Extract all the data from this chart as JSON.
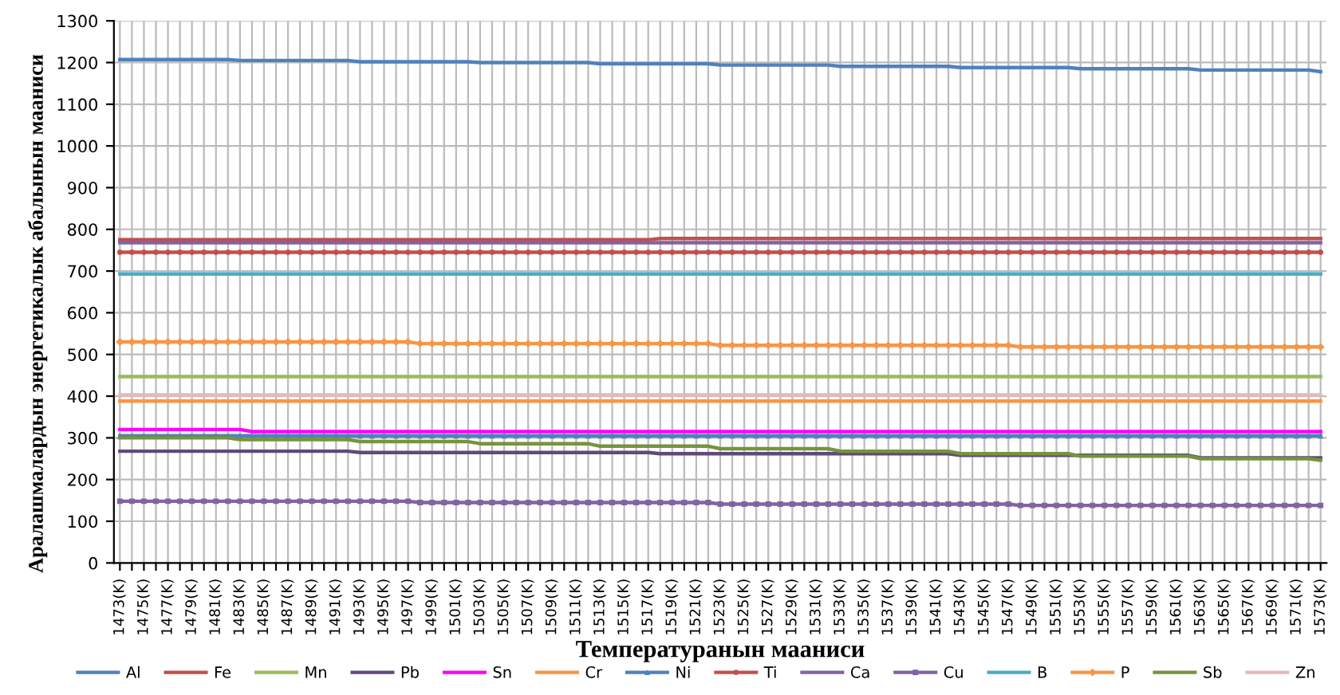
{
  "chart_data": {
    "type": "line",
    "xlabel": "Температуранын мааниси",
    "ylabel": "Аралашмалардын энергетикалык абалынын мааниси",
    "categories": [
      "1473(K)",
      null,
      "1475(K)",
      null,
      "1477(K)",
      null,
      "1479(K)",
      null,
      "1481(K)",
      null,
      "1483(K)",
      null,
      "1485(K)",
      null,
      "1487(K)",
      null,
      "1489(K)",
      null,
      "1491(K)",
      null,
      "1493(K)",
      null,
      "1495(K)",
      null,
      "1497(K)",
      null,
      "1499(K)",
      null,
      "1501(K)",
      null,
      "1503(K)",
      null,
      "1505(K)",
      null,
      "1507(K)",
      null,
      "1509(K)",
      null,
      "1511(K)",
      null,
      "1513(K)",
      null,
      "1515(K)",
      null,
      "1517(K)",
      null,
      "1519(K)",
      null,
      "1521(K)",
      null,
      "1523(K)",
      null,
      "1525(K)",
      null,
      "1527(K)",
      null,
      "1529(K)",
      null,
      "1531(K)",
      null,
      "1533(K)",
      null,
      "1535(K)",
      null,
      "1537(K)",
      null,
      "1539(K)",
      null,
      "1541(K)",
      null,
      "1543(K)",
      null,
      "1545(K)",
      null,
      "1547(K)",
      null,
      "1549(K)",
      null,
      "1551(K)",
      null,
      "1553(K)",
      null,
      "1555(K)",
      null,
      "1557(K)",
      null,
      "1559(K)",
      null,
      "1561(K)",
      null,
      "1563(K)",
      null,
      "1565(K)",
      null,
      "1567(K)",
      null,
      "1569(K)",
      null,
      "1571(K)",
      null,
      "1573(K)"
    ],
    "ylim": [
      0,
      1300
    ],
    "yticks": [
      0,
      100,
      200,
      300,
      400,
      500,
      600,
      700,
      800,
      900,
      1000,
      1100,
      1200,
      1300
    ],
    "grid": true,
    "legend": "bottom",
    "line_style": "solid",
    "series": [
      {
        "name": "Al",
        "color": "#4f81bd",
        "marker": "none",
        "values": [
          1207,
          1207,
          1207,
          1207,
          1207,
          1207,
          1207,
          1207,
          1207,
          1207,
          1205,
          1205,
          1205,
          1205,
          1205,
          1205,
          1205,
          1205,
          1205,
          1205,
          1202,
          1202,
          1202,
          1202,
          1202,
          1202,
          1202,
          1202,
          1202,
          1202,
          1200,
          1200,
          1200,
          1200,
          1200,
          1200,
          1200,
          1200,
          1200,
          1200,
          1197,
          1197,
          1197,
          1197,
          1197,
          1197,
          1197,
          1197,
          1197,
          1197,
          1194,
          1194,
          1194,
          1194,
          1194,
          1194,
          1194,
          1194,
          1194,
          1194,
          1191,
          1191,
          1191,
          1191,
          1191,
          1191,
          1191,
          1191,
          1191,
          1191,
          1188,
          1188,
          1188,
          1188,
          1188,
          1188,
          1188,
          1188,
          1188,
          1188,
          1185,
          1185,
          1185,
          1185,
          1185,
          1185,
          1185,
          1185,
          1185,
          1185,
          1182,
          1182,
          1182,
          1182,
          1182,
          1182,
          1182,
          1182,
          1182,
          1182,
          1178
        ]
      },
      {
        "name": "Fe",
        "color": "#c0504d",
        "marker": "none",
        "values": [
          775,
          775,
          775,
          775,
          775,
          775,
          775,
          775,
          775,
          775,
          775,
          775,
          775,
          775,
          775,
          775,
          775,
          775,
          775,
          775,
          775,
          775,
          775,
          775,
          775,
          775,
          775,
          775,
          775,
          775,
          775,
          775,
          775,
          775,
          775,
          775,
          775,
          775,
          775,
          775,
          775,
          775,
          775,
          775,
          775,
          778,
          778,
          778,
          778,
          778,
          778,
          778,
          778,
          778,
          778,
          778,
          778,
          778,
          778,
          778,
          778,
          778,
          778,
          778,
          778,
          778,
          778,
          778,
          778,
          778,
          778,
          778,
          778,
          778,
          778,
          778,
          778,
          778,
          778,
          778,
          778,
          778,
          778,
          778,
          778,
          778,
          778,
          778,
          778,
          778,
          778,
          778,
          778,
          778,
          778,
          778,
          778,
          778,
          778,
          778,
          778
        ]
      },
      {
        "name": "Mn",
        "color": "#9bbb59",
        "marker": "none",
        "values": [
          447,
          447,
          447,
          447,
          447,
          447,
          447,
          447,
          447,
          447,
          447,
          447,
          447,
          447,
          447,
          447,
          447,
          447,
          447,
          447,
          447,
          447,
          447,
          447,
          447,
          447,
          447,
          447,
          447,
          447,
          447,
          447,
          447,
          447,
          447,
          447,
          447,
          447,
          447,
          447,
          447,
          447,
          447,
          447,
          447,
          447,
          447,
          447,
          447,
          447,
          447,
          447,
          447,
          447,
          447,
          447,
          447,
          447,
          447,
          447,
          447,
          447,
          447,
          447,
          447,
          447,
          447,
          447,
          447,
          447,
          447,
          447,
          447,
          447,
          447,
          447,
          447,
          447,
          447,
          447,
          447,
          447,
          447,
          447,
          447,
          447,
          447,
          447,
          447,
          447,
          447,
          447,
          447,
          447,
          447,
          447,
          447,
          447,
          447,
          447,
          447
        ]
      },
      {
        "name": "Pb",
        "color": "#604a7b",
        "marker": "none",
        "values": [
          268,
          268,
          268,
          268,
          268,
          268,
          268,
          268,
          268,
          268,
          268,
          268,
          268,
          268,
          268,
          268,
          268,
          268,
          268,
          268,
          265,
          265,
          265,
          265,
          265,
          265,
          265,
          265,
          265,
          265,
          265,
          265,
          265,
          265,
          265,
          265,
          265,
          265,
          265,
          265,
          265,
          265,
          265,
          265,
          265,
          262,
          262,
          262,
          262,
          262,
          262,
          262,
          262,
          262,
          262,
          262,
          262,
          262,
          262,
          262,
          262,
          262,
          262,
          262,
          262,
          262,
          262,
          262,
          262,
          262,
          258,
          258,
          258,
          258,
          258,
          258,
          258,
          258,
          258,
          258,
          258,
          258,
          258,
          258,
          258,
          258,
          258,
          258,
          258,
          258,
          252,
          252,
          252,
          252,
          252,
          252,
          252,
          252,
          252,
          252,
          252
        ]
      },
      {
        "name": "Sn",
        "color": "#ff00ff",
        "marker": "none",
        "values": [
          320,
          320,
          320,
          320,
          320,
          320,
          320,
          320,
          320,
          320,
          320,
          315,
          315,
          315,
          315,
          315,
          315,
          315,
          315,
          315,
          315,
          315,
          315,
          315,
          315,
          315,
          315,
          315,
          315,
          315,
          315,
          315,
          315,
          315,
          315,
          315,
          315,
          315,
          315,
          315,
          315,
          315,
          315,
          315,
          315,
          315,
          315,
          315,
          315,
          315,
          315,
          315,
          315,
          315,
          315,
          315,
          315,
          315,
          315,
          315,
          315,
          315,
          315,
          315,
          315,
          315,
          315,
          315,
          315,
          315,
          315,
          315,
          315,
          315,
          315,
          315,
          315,
          315,
          315,
          315,
          315,
          315,
          315,
          315,
          315,
          315,
          315,
          315,
          315,
          315,
          315,
          315,
          315,
          315,
          315,
          315,
          315,
          315,
          315,
          315,
          315
        ]
      },
      {
        "name": "Cr",
        "color": "#f79646",
        "marker": "none",
        "values": [
          388,
          388,
          388,
          388,
          388,
          388,
          388,
          388,
          388,
          388,
          388,
          388,
          388,
          388,
          388,
          388,
          388,
          388,
          388,
          388,
          388,
          388,
          388,
          388,
          388,
          388,
          388,
          388,
          388,
          388,
          388,
          388,
          388,
          388,
          388,
          388,
          388,
          388,
          388,
          388,
          388,
          388,
          388,
          388,
          388,
          388,
          388,
          388,
          388,
          388,
          388,
          388,
          388,
          388,
          388,
          388,
          388,
          388,
          388,
          388,
          388,
          388,
          388,
          388,
          388,
          388,
          388,
          388,
          388,
          388,
          388,
          388,
          388,
          388,
          388,
          388,
          388,
          388,
          388,
          388,
          388,
          388,
          388,
          388,
          388,
          388,
          388,
          388,
          388,
          388,
          388,
          388,
          388,
          388,
          388,
          388,
          388,
          388,
          388,
          388,
          388
        ]
      },
      {
        "name": "Ni",
        "color": "#4f81bd",
        "marker": "triangle",
        "values": [
          305,
          305,
          305,
          305,
          305,
          305,
          305,
          305,
          305,
          305,
          305,
          305,
          305,
          305,
          305,
          305,
          305,
          305,
          305,
          305,
          305,
          305,
          305,
          305,
          305,
          305,
          305,
          305,
          305,
          305,
          305,
          305,
          305,
          305,
          305,
          305,
          305,
          305,
          305,
          305,
          305,
          305,
          305,
          305,
          305,
          305,
          305,
          305,
          305,
          305,
          305,
          305,
          305,
          305,
          305,
          305,
          305,
          305,
          305,
          305,
          305,
          305,
          305,
          305,
          305,
          305,
          305,
          305,
          305,
          305,
          305,
          305,
          305,
          305,
          305,
          305,
          305,
          305,
          305,
          305,
          305,
          305,
          305,
          305,
          305,
          305,
          305,
          305,
          305,
          305,
          305,
          305,
          305,
          305,
          305,
          305,
          305,
          305,
          305,
          305,
          305
        ]
      },
      {
        "name": "Ti",
        "color": "#c0504d",
        "marker": "circle",
        "values": [
          745,
          745,
          745,
          745,
          745,
          745,
          745,
          745,
          745,
          745,
          745,
          745,
          745,
          745,
          745,
          745,
          745,
          745,
          745,
          745,
          745,
          745,
          745,
          745,
          745,
          745,
          745,
          745,
          745,
          745,
          745,
          745,
          745,
          745,
          745,
          745,
          745,
          745,
          745,
          745,
          745,
          745,
          745,
          745,
          745,
          745,
          745,
          745,
          745,
          745,
          745,
          745,
          745,
          745,
          745,
          745,
          745,
          745,
          745,
          745,
          745,
          745,
          745,
          745,
          745,
          745,
          745,
          745,
          745,
          745,
          745,
          745,
          745,
          745,
          745,
          745,
          745,
          745,
          745,
          745,
          745,
          745,
          745,
          745,
          745,
          745,
          745,
          745,
          745,
          745,
          745,
          745,
          745,
          745,
          745,
          745,
          745,
          745,
          745,
          745,
          745
        ]
      },
      {
        "name": "Ca",
        "color": "#8064a2",
        "marker": "none",
        "values": [
          768,
          768,
          768,
          768,
          768,
          768,
          768,
          768,
          768,
          768,
          768,
          768,
          768,
          768,
          768,
          768,
          768,
          768,
          768,
          768,
          768,
          768,
          768,
          768,
          768,
          768,
          768,
          768,
          768,
          768,
          768,
          768,
          768,
          768,
          768,
          768,
          768,
          768,
          768,
          768,
          768,
          768,
          768,
          768,
          768,
          768,
          768,
          768,
          768,
          768,
          768,
          768,
          768,
          768,
          768,
          768,
          768,
          768,
          768,
          768,
          768,
          768,
          768,
          768,
          768,
          768,
          768,
          768,
          768,
          768,
          768,
          768,
          768,
          768,
          768,
          768,
          768,
          768,
          768,
          768,
          768,
          768,
          768,
          768,
          768,
          768,
          768,
          768,
          768,
          768,
          768,
          768,
          768,
          768,
          768,
          768,
          768,
          768,
          768,
          768,
          768
        ]
      },
      {
        "name": "Cu",
        "color": "#8064a2",
        "marker": "square",
        "values": [
          148,
          148,
          148,
          148,
          148,
          148,
          148,
          148,
          148,
          148,
          148,
          148,
          148,
          148,
          148,
          148,
          148,
          148,
          148,
          148,
          148,
          148,
          148,
          148,
          148,
          145,
          145,
          145,
          145,
          145,
          145,
          145,
          145,
          145,
          145,
          145,
          145,
          145,
          145,
          145,
          145,
          145,
          145,
          145,
          145,
          145,
          145,
          145,
          145,
          145,
          141,
          141,
          141,
          141,
          141,
          141,
          141,
          141,
          141,
          141,
          141,
          141,
          141,
          141,
          141,
          141,
          141,
          141,
          141,
          141,
          141,
          141,
          141,
          141,
          141,
          138,
          138,
          138,
          138,
          138,
          138,
          138,
          138,
          138,
          138,
          138,
          138,
          138,
          138,
          138,
          138,
          138,
          138,
          138,
          138,
          138,
          138,
          138,
          138,
          138,
          138
        ]
      },
      {
        "name": "B",
        "color": "#4bacc6",
        "marker": "none",
        "values": [
          693,
          693,
          693,
          693,
          693,
          693,
          693,
          693,
          693,
          693,
          693,
          693,
          693,
          693,
          693,
          693,
          693,
          693,
          693,
          693,
          693,
          693,
          693,
          693,
          693,
          693,
          693,
          693,
          693,
          693,
          693,
          693,
          693,
          693,
          693,
          693,
          693,
          693,
          693,
          693,
          693,
          693,
          693,
          693,
          693,
          693,
          693,
          693,
          693,
          693,
          693,
          693,
          693,
          693,
          693,
          693,
          693,
          693,
          693,
          693,
          693,
          693,
          693,
          693,
          693,
          693,
          693,
          693,
          693,
          693,
          693,
          693,
          693,
          693,
          693,
          693,
          693,
          693,
          693,
          693,
          693,
          693,
          693,
          693,
          693,
          693,
          693,
          693,
          693,
          693,
          693,
          693,
          693,
          693,
          693,
          693,
          693,
          693,
          693,
          693,
          693
        ]
      },
      {
        "name": "P",
        "color": "#f79646",
        "marker": "diamond",
        "values": [
          530,
          530,
          530,
          530,
          530,
          530,
          530,
          530,
          530,
          530,
          530,
          530,
          530,
          530,
          530,
          530,
          530,
          530,
          530,
          530,
          530,
          530,
          530,
          530,
          530,
          526,
          526,
          526,
          526,
          526,
          526,
          526,
          526,
          526,
          526,
          526,
          526,
          526,
          526,
          526,
          526,
          526,
          526,
          526,
          526,
          526,
          526,
          526,
          526,
          526,
          522,
          522,
          522,
          522,
          522,
          522,
          522,
          522,
          522,
          522,
          522,
          522,
          522,
          522,
          522,
          522,
          522,
          522,
          522,
          522,
          522,
          522,
          522,
          522,
          522,
          518,
          518,
          518,
          518,
          518,
          518,
          518,
          518,
          518,
          518,
          518,
          518,
          518,
          518,
          518,
          518,
          518,
          518,
          518,
          518,
          518,
          518,
          518,
          518,
          518,
          518
        ]
      },
      {
        "name": "Sb",
        "color": "#77933c",
        "marker": "none",
        "values": [
          300,
          300,
          300,
          300,
          300,
          300,
          300,
          300,
          300,
          300,
          296,
          296,
          296,
          296,
          296,
          296,
          296,
          296,
          296,
          296,
          291,
          291,
          291,
          291,
          291,
          291,
          291,
          291,
          291,
          291,
          286,
          286,
          286,
          286,
          286,
          286,
          286,
          286,
          286,
          286,
          280,
          280,
          280,
          280,
          280,
          280,
          280,
          280,
          280,
          280,
          274,
          274,
          274,
          274,
          274,
          274,
          274,
          274,
          274,
          274,
          268,
          268,
          268,
          268,
          268,
          268,
          268,
          268,
          268,
          268,
          262,
          262,
          262,
          262,
          262,
          262,
          262,
          262,
          262,
          262,
          256,
          256,
          256,
          256,
          256,
          256,
          256,
          256,
          256,
          256,
          250,
          250,
          250,
          250,
          250,
          250,
          250,
          250,
          250,
          250,
          246
        ]
      },
      {
        "name": "Zn",
        "color": "#e6b9b8",
        "marker": "none",
        "values": [
          403,
          403,
          403,
          403,
          403,
          403,
          403,
          403,
          403,
          403,
          403,
          403,
          403,
          403,
          403,
          403,
          403,
          403,
          403,
          403,
          403,
          403,
          403,
          403,
          403,
          403,
          403,
          403,
          403,
          403,
          403,
          403,
          403,
          403,
          403,
          403,
          403,
          403,
          403,
          403,
          403,
          403,
          403,
          403,
          403,
          403,
          403,
          403,
          403,
          403,
          403,
          403,
          403,
          403,
          403,
          403,
          403,
          403,
          403,
          403,
          403,
          403,
          403,
          403,
          403,
          403,
          403,
          403,
          403,
          403,
          403,
          403,
          403,
          403,
          403,
          403,
          403,
          403,
          403,
          403,
          403,
          403,
          403,
          403,
          403,
          403,
          403,
          403,
          403,
          403,
          403,
          403,
          403,
          403,
          403,
          403,
          403,
          403,
          403,
          403,
          403
        ]
      }
    ]
  }
}
